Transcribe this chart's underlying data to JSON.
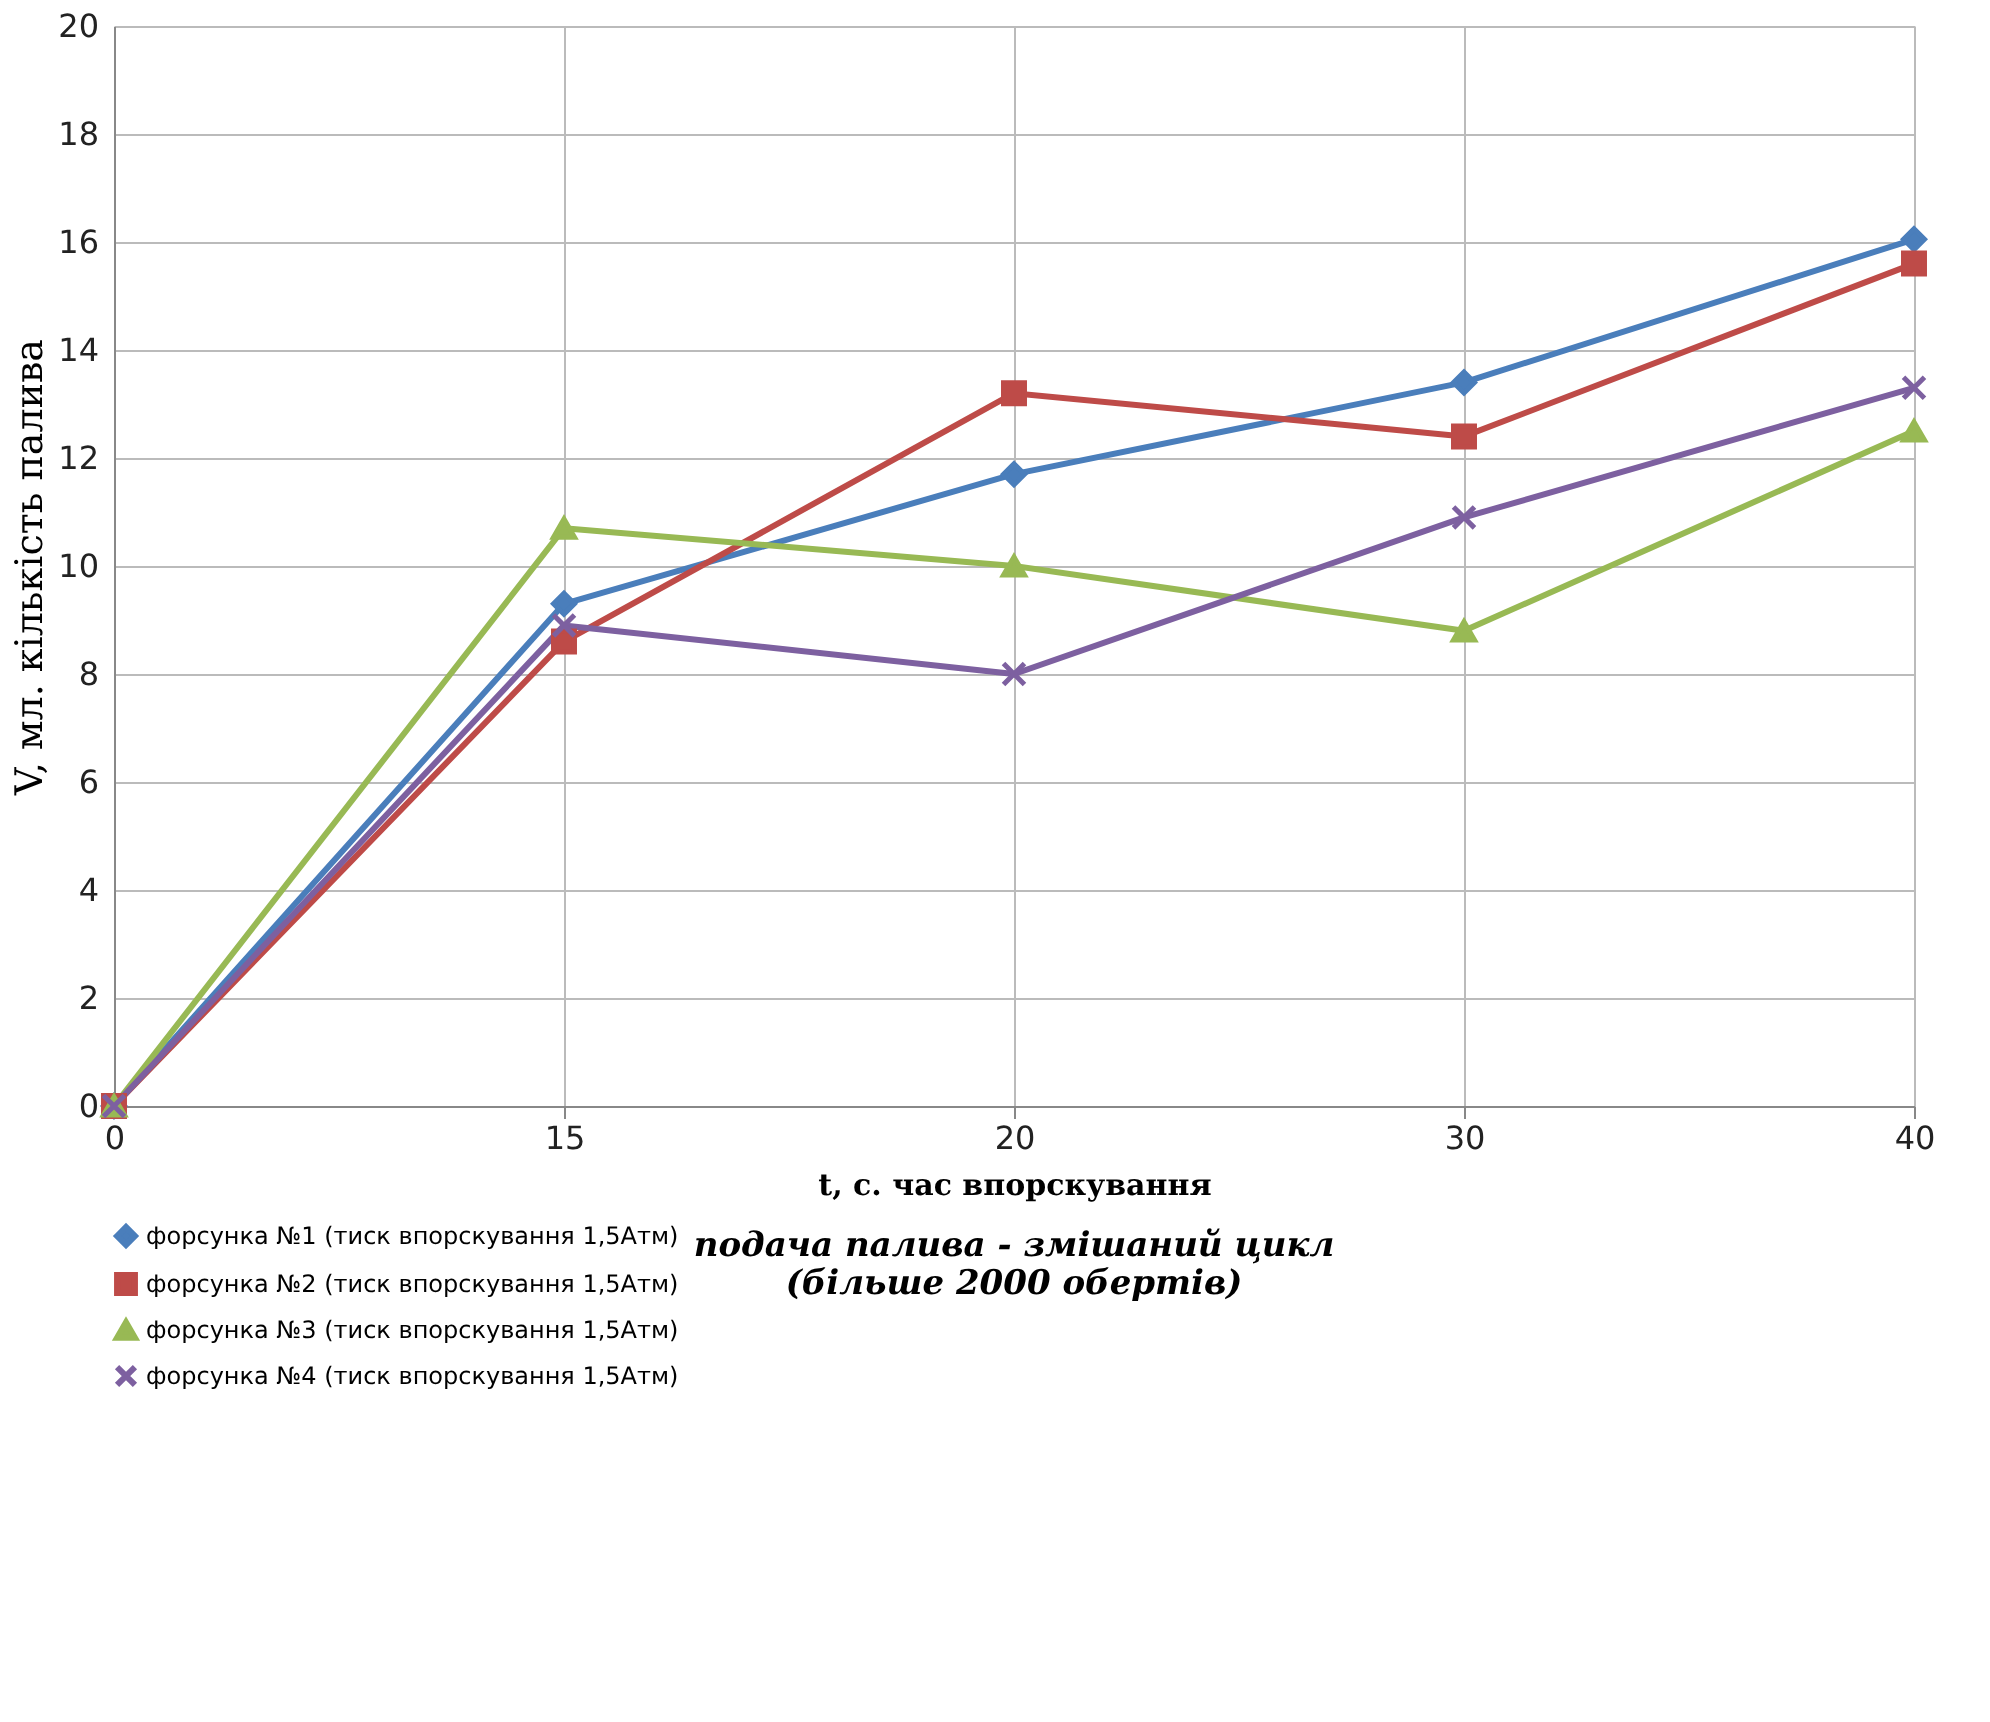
{
  "chart_data": {
    "type": "line",
    "title": "подача палива - змішаний цикл\n(більше 2000 обертів)",
    "xlabel": "t, с. час впорскування",
    "ylabel": "V, мл. кількість палива",
    "categories": [
      "0",
      "15",
      "20",
      "30",
      "40"
    ],
    "series": [
      {
        "name": "форсунка №1 (тиск впорскування 1,5Атм)",
        "color": "#4a7ebb",
        "marker": "diamond",
        "values": [
          0,
          9.3,
          11.7,
          13.4,
          16.05
        ]
      },
      {
        "name": "форсунка №2 (тиск впорскування 1,5Атм)",
        "color": "#be4b48",
        "marker": "square",
        "values": [
          0,
          8.6,
          13.2,
          12.4,
          15.6
        ]
      },
      {
        "name": "форсунка №3 (тиск впорскування 1,5Атм)",
        "color": "#98b954",
        "marker": "triangle",
        "values": [
          0,
          10.7,
          10.0,
          8.8,
          12.5
        ]
      },
      {
        "name": "форсунка №4 (тиск впорскування 1,5Атм)",
        "color": "#7d60a0",
        "marker": "cross",
        "values": [
          0,
          8.9,
          8.0,
          10.9,
          13.3
        ]
      }
    ],
    "ylim": [
      0,
      20
    ],
    "yticks": [
      0,
      2,
      4,
      6,
      8,
      10,
      12,
      14,
      16,
      18,
      20
    ],
    "grid": true,
    "legend": "bottom",
    "line_style": "solid"
  }
}
